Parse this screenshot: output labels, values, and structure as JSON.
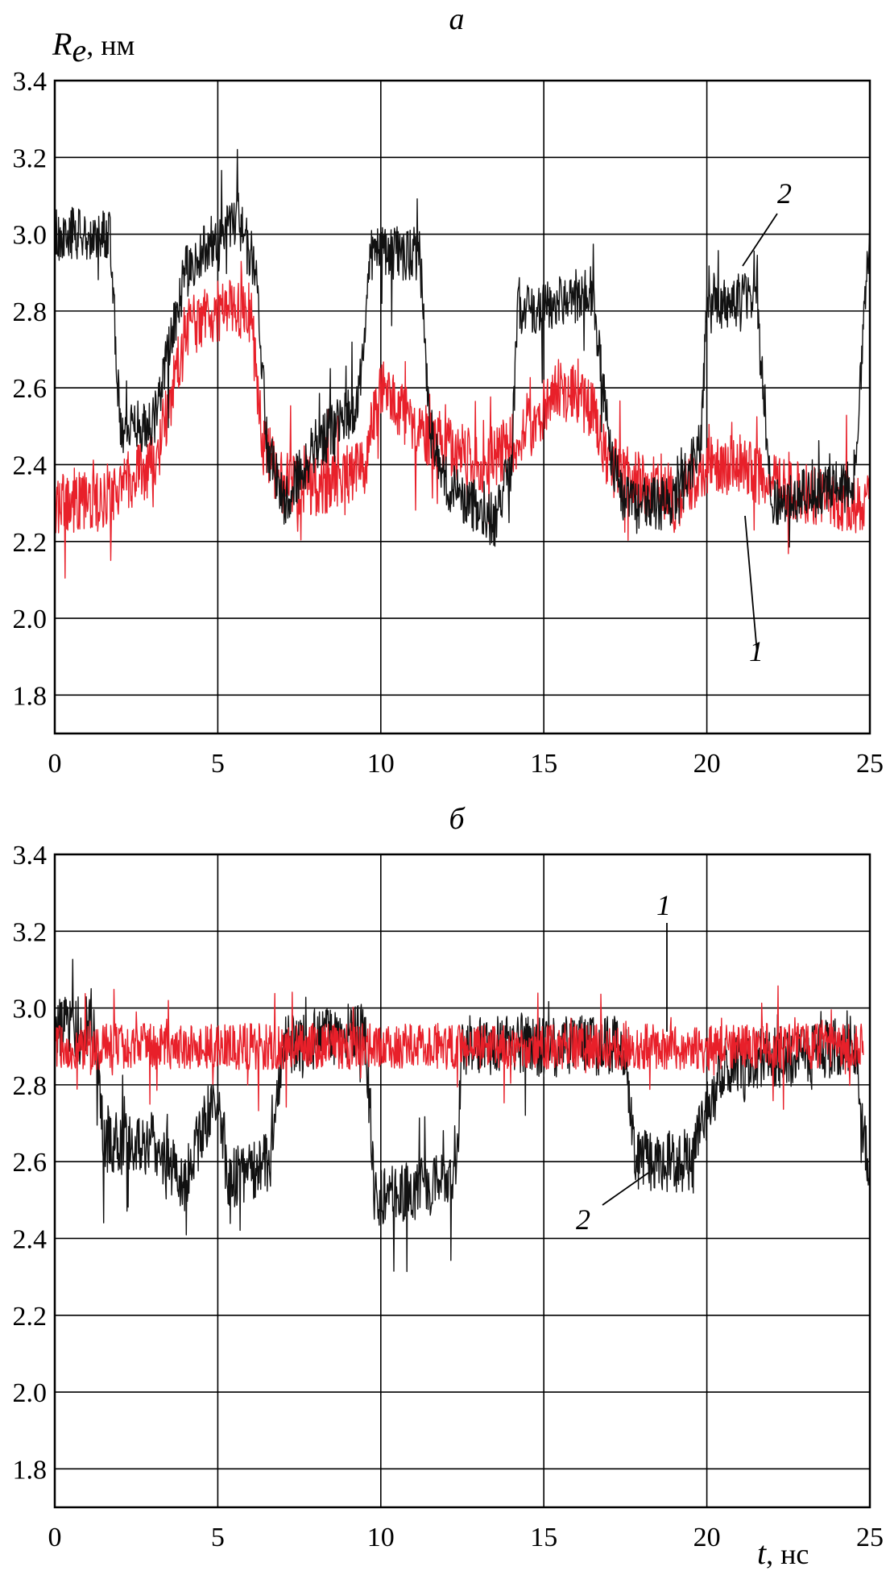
{
  "chart_data": [
    {
      "type": "line",
      "panel": "a",
      "ylabel": {
        "symbol": "R",
        "subscript": "e",
        "unit": ", нм"
      },
      "xlabel": {
        "symbol": "",
        "unit": ""
      },
      "xlim": [
        0,
        25
      ],
      "ylim": [
        1.7,
        3.4
      ],
      "xticks": [
        0,
        5,
        10,
        15,
        20,
        25
      ],
      "yticks": [
        1.8,
        2.0,
        2.2,
        2.4,
        2.6,
        2.8,
        3.0,
        3.2,
        3.4
      ],
      "ytick_labels": [
        "1.8",
        "2.0",
        "2.2",
        "2.4",
        "2.6",
        "2.8",
        "3.0",
        "3.2",
        "3.4"
      ],
      "xtick_labels": [
        "0",
        "5",
        "10",
        "15",
        "20",
        "25"
      ],
      "grid": true,
      "series": [
        {
          "label": "1",
          "color": "#e8202a",
          "noise": 0.08,
          "points": [
            [
              0,
              2.3
            ],
            [
              1.5,
              2.3
            ],
            [
              2.0,
              2.35
            ],
            [
              3.0,
              2.4
            ],
            [
              3.5,
              2.55
            ],
            [
              4.0,
              2.75
            ],
            [
              5.0,
              2.8
            ],
            [
              6.0,
              2.8
            ],
            [
              6.4,
              2.45
            ],
            [
              7.0,
              2.35
            ],
            [
              8.5,
              2.35
            ],
            [
              9.5,
              2.4
            ],
            [
              10.0,
              2.6
            ],
            [
              11.0,
              2.5
            ],
            [
              12.0,
              2.45
            ],
            [
              13.0,
              2.4
            ],
            [
              14.0,
              2.45
            ],
            [
              15.5,
              2.6
            ],
            [
              16.5,
              2.55
            ],
            [
              17.0,
              2.4
            ],
            [
              18.0,
              2.35
            ],
            [
              19.0,
              2.3
            ],
            [
              20.0,
              2.4
            ],
            [
              21.0,
              2.4
            ],
            [
              22.0,
              2.35
            ],
            [
              24.0,
              2.3
            ],
            [
              25.0,
              2.3
            ]
          ]
        },
        {
          "label": "2",
          "color": "#111111",
          "noise": 0.07,
          "points": [
            [
              0,
              3.0
            ],
            [
              1.7,
              3.0
            ],
            [
              2.0,
              2.5
            ],
            [
              3.0,
              2.5
            ],
            [
              3.5,
              2.7
            ],
            [
              4.0,
              2.9
            ],
            [
              5.0,
              3.0
            ],
            [
              5.6,
              3.05
            ],
            [
              6.2,
              2.9
            ],
            [
              6.5,
              2.45
            ],
            [
              7.0,
              2.3
            ],
            [
              8.0,
              2.45
            ],
            [
              9.3,
              2.55
            ],
            [
              9.7,
              2.95
            ],
            [
              11.2,
              2.95
            ],
            [
              11.5,
              2.5
            ],
            [
              12.0,
              2.35
            ],
            [
              13.5,
              2.25
            ],
            [
              14.0,
              2.4
            ],
            [
              14.2,
              2.8
            ],
            [
              16.5,
              2.85
            ],
            [
              17.0,
              2.45
            ],
            [
              17.5,
              2.3
            ],
            [
              19.0,
              2.3
            ],
            [
              19.8,
              2.45
            ],
            [
              20.0,
              2.8
            ],
            [
              21.5,
              2.85
            ],
            [
              22.0,
              2.3
            ],
            [
              24.5,
              2.35
            ],
            [
              25.0,
              3.0
            ]
          ]
        }
      ]
    },
    {
      "type": "line",
      "panel": "б",
      "ylabel": {
        "symbol": "",
        "subscript": "",
        "unit": ""
      },
      "xlabel": {
        "symbol": "t",
        "unit": ", нс"
      },
      "xlim": [
        0,
        25
      ],
      "ylim": [
        1.7,
        3.4
      ],
      "xticks": [
        0,
        5,
        10,
        15,
        20,
        25
      ],
      "yticks": [
        1.8,
        2.0,
        2.2,
        2.4,
        2.6,
        2.8,
        3.0,
        3.2,
        3.4
      ],
      "ytick_labels": [
        "1.8",
        "2.0",
        "2.2",
        "2.4",
        "2.6",
        "2.8",
        "3.0",
        "3.2",
        "3.4"
      ],
      "xtick_labels": [
        "0",
        "5",
        "10",
        "15",
        "20",
        "25"
      ],
      "grid": true,
      "series": [
        {
          "label": "2",
          "color": "#111111",
          "noise": 0.08,
          "points": [
            [
              0,
              2.95
            ],
            [
              1.2,
              2.95
            ],
            [
              1.5,
              2.65
            ],
            [
              3.0,
              2.65
            ],
            [
              4.0,
              2.55
            ],
            [
              5.0,
              2.8
            ],
            [
              5.3,
              2.55
            ],
            [
              6.6,
              2.6
            ],
            [
              7.0,
              2.9
            ],
            [
              9.5,
              2.95
            ],
            [
              9.8,
              2.5
            ],
            [
              12.3,
              2.55
            ],
            [
              12.5,
              2.9
            ],
            [
              17.5,
              2.9
            ],
            [
              17.8,
              2.6
            ],
            [
              19.5,
              2.6
            ],
            [
              20.5,
              2.85
            ],
            [
              24.5,
              2.9
            ],
            [
              25.0,
              2.55
            ]
          ]
        },
        {
          "label": "1",
          "color": "#e8202a",
          "noise": 0.06,
          "points": [
            [
              0,
              2.9
            ],
            [
              24.8,
              2.9
            ]
          ]
        }
      ]
    }
  ],
  "annotations": {
    "panel_a": {
      "curve1": "1",
      "curve2": "2"
    },
    "panel_b": {
      "curve1": "1",
      "curve2": "2"
    }
  }
}
